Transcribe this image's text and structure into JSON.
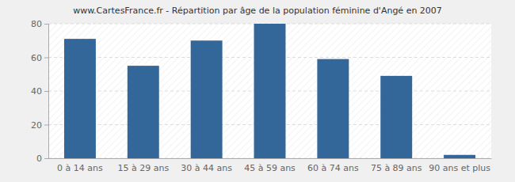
{
  "chart_data": {
    "type": "bar",
    "title": "www.CartesFrance.fr - Répartition par âge de la population féminine d'Angé en 2007",
    "categories": [
      "0 à 14 ans",
      "15 à 29 ans",
      "30 à 44 ans",
      "45 à 59 ans",
      "60 à 74 ans",
      "75 à 89 ans",
      "90 ans et plus"
    ],
    "values": [
      71,
      55,
      70,
      80,
      59,
      49,
      2
    ],
    "color": "#336699",
    "ylim": [
      0,
      80
    ],
    "yticks": [
      0,
      20,
      40,
      60,
      80
    ],
    "grid": true
  }
}
